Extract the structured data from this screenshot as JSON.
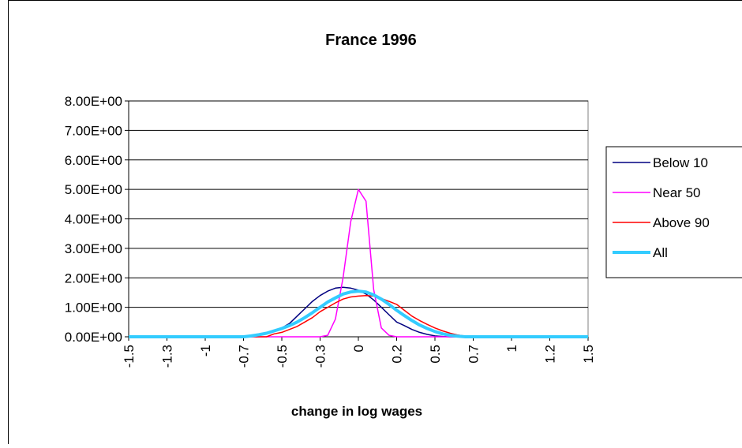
{
  "chart_data": {
    "type": "line",
    "title": "France 1996",
    "x_label": "change in log wages",
    "categories": [
      "-1.5",
      null,
      null,
      null,
      null,
      "-1.3",
      null,
      null,
      null,
      null,
      "-1",
      null,
      null,
      null,
      null,
      "-0.7",
      null,
      null,
      null,
      null,
      "-0.5",
      null,
      null,
      null,
      null,
      "-0.3",
      null,
      null,
      null,
      null,
      "0",
      null,
      null,
      null,
      null,
      "0.2",
      null,
      null,
      null,
      null,
      "0.5",
      null,
      null,
      null,
      null,
      "0.7",
      null,
      null,
      null,
      null,
      "1",
      null,
      null,
      null,
      null,
      "1.2",
      null,
      null,
      null,
      null,
      "1.5"
    ],
    "ylim": [
      0,
      8
    ],
    "yticks": [
      {
        "value": 0,
        "label": "0.00E+00"
      },
      {
        "value": 1,
        "label": "1.00E+00"
      },
      {
        "value": 2,
        "label": "2.00E+00"
      },
      {
        "value": 3,
        "label": "3.00E+00"
      },
      {
        "value": 4,
        "label": "4.00E+00"
      },
      {
        "value": 5,
        "label": "5.00E+00"
      },
      {
        "value": 6,
        "label": "6.00E+00"
      },
      {
        "value": 7,
        "label": "7.00E+00"
      },
      {
        "value": 8,
        "label": "8.00E+00"
      }
    ],
    "grid": true,
    "legend": "right",
    "series": [
      {
        "name": "Below 10",
        "color": "#000080",
        "width": 1.5,
        "values": [
          0,
          0,
          0,
          0,
          0,
          0,
          0,
          0,
          0,
          0,
          0,
          0,
          0,
          0,
          0,
          0,
          0.02,
          0.06,
          0.1,
          0.18,
          0.3,
          0.45,
          0.7,
          0.95,
          1.2,
          1.4,
          1.55,
          1.65,
          1.68,
          1.65,
          1.58,
          1.45,
          1.25,
          1.0,
          0.75,
          0.5,
          0.38,
          0.25,
          0.15,
          0.08,
          0.03,
          0.01,
          0,
          0,
          0,
          0,
          0,
          0,
          0,
          0,
          0,
          0,
          0,
          0,
          0,
          0,
          0,
          0,
          0,
          0,
          0
        ]
      },
      {
        "name": "Near 50",
        "color": "#ff00ff",
        "width": 1.5,
        "values": [
          0,
          0,
          0,
          0,
          0,
          0,
          0,
          0,
          0,
          0,
          0,
          0,
          0,
          0,
          0,
          0,
          0,
          0,
          0,
          0,
          0,
          0,
          0,
          0,
          0,
          0,
          0.05,
          0.6,
          2.0,
          3.9,
          5.0,
          4.6,
          1.6,
          0.3,
          0.05,
          0,
          0,
          0,
          0,
          0,
          0,
          0,
          0,
          0,
          0,
          0,
          0,
          0,
          0,
          0,
          0,
          0,
          0,
          0,
          0,
          0,
          0,
          0,
          0,
          0,
          0
        ]
      },
      {
        "name": "Above 90",
        "color": "#ff0000",
        "width": 1.5,
        "values": [
          0,
          0,
          0,
          0,
          0,
          0,
          0,
          0,
          0,
          0,
          0,
          0,
          0,
          0,
          0,
          0,
          0,
          0,
          0,
          0.1,
          0.15,
          0.25,
          0.35,
          0.5,
          0.65,
          0.85,
          1.0,
          1.15,
          1.28,
          1.35,
          1.38,
          1.4,
          1.38,
          1.3,
          1.2,
          1.1,
          0.9,
          0.7,
          0.55,
          0.42,
          0.3,
          0.2,
          0.12,
          0.06,
          0.02,
          0,
          0,
          0,
          0,
          0,
          0,
          0,
          0,
          0,
          0,
          0,
          0,
          0,
          0,
          0,
          0
        ]
      },
      {
        "name": "All",
        "color": "#33ccff",
        "width": 4,
        "values": [
          0,
          0,
          0,
          0,
          0,
          0,
          0,
          0,
          0,
          0,
          0,
          0,
          0,
          0,
          0,
          0,
          0.03,
          0.07,
          0.12,
          0.2,
          0.28,
          0.38,
          0.5,
          0.65,
          0.82,
          1.0,
          1.18,
          1.32,
          1.45,
          1.52,
          1.55,
          1.52,
          1.42,
          1.28,
          1.1,
          0.9,
          0.72,
          0.55,
          0.4,
          0.28,
          0.18,
          0.1,
          0.05,
          0.02,
          0,
          0,
          0,
          0,
          0,
          0,
          0,
          0,
          0,
          0,
          0,
          0,
          0,
          0,
          0,
          0,
          0
        ]
      }
    ]
  }
}
